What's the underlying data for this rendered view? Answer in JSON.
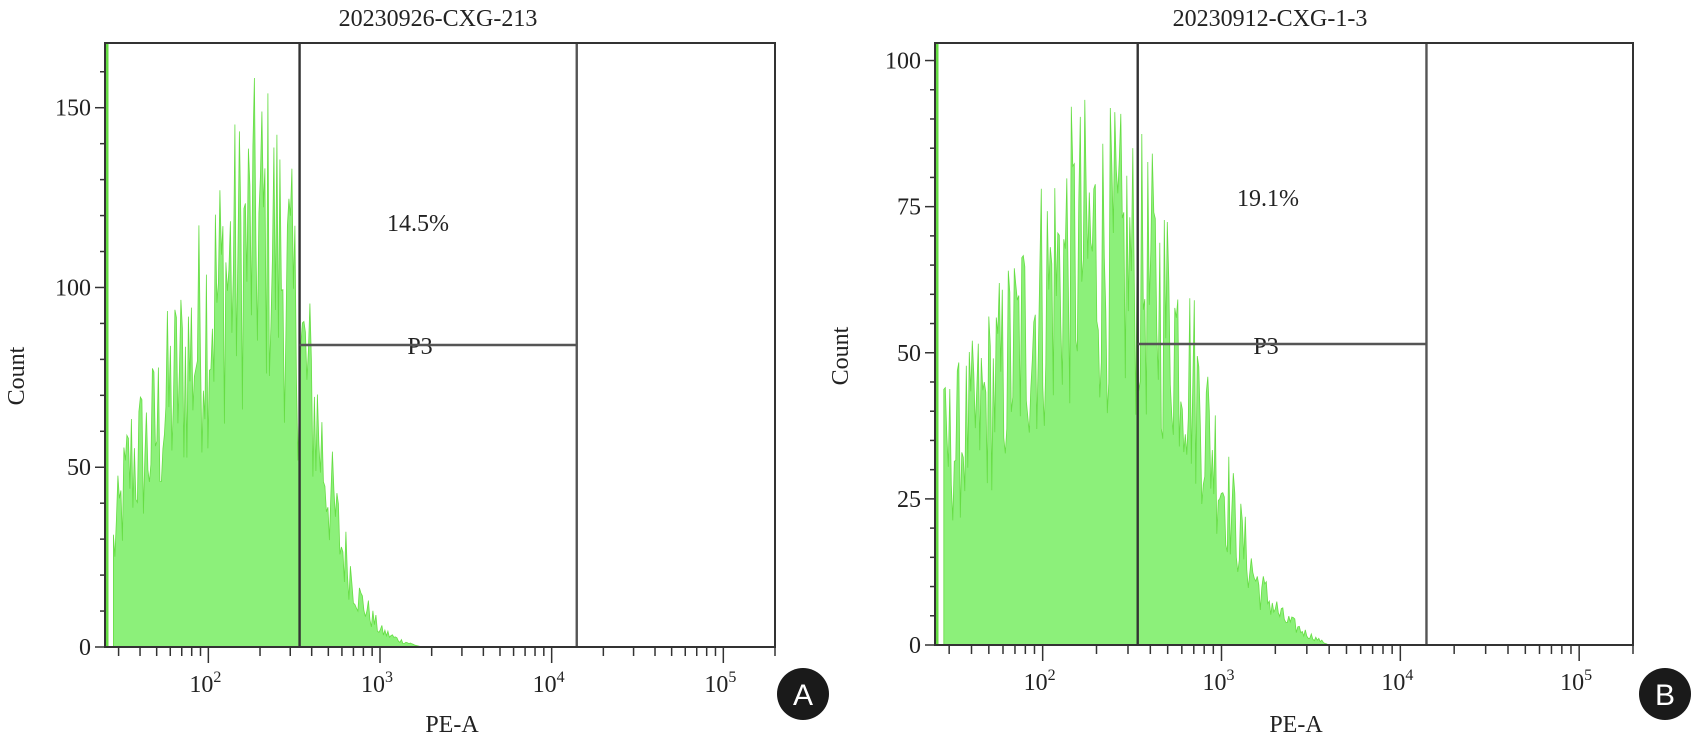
{
  "colors": {
    "histogram": "#8cf07a",
    "histogram_edge": "#66dd44",
    "axis": "#333333",
    "gate": "#555555",
    "badge": "#1a1a1a"
  },
  "chart_data": [
    {
      "type": "histogram",
      "title": "20230926-CXG-213",
      "xlabel": "PE-A",
      "ylabel": "Count",
      "x_scale": "log",
      "xlim": [
        25,
        200000
      ],
      "ylim": [
        0,
        168
      ],
      "yticks": [
        0,
        50,
        100,
        150
      ],
      "xticks": [
        {
          "value": 100,
          "base": "10",
          "exp": "2"
        },
        {
          "value": 1000,
          "base": "10",
          "exp": "3"
        },
        {
          "value": 10000,
          "base": "10",
          "exp": "4"
        },
        {
          "value": 100000,
          "base": "10",
          "exp": "5"
        }
      ],
      "histogram": {
        "x_start": 28,
        "x_end": 1750,
        "peak": 130,
        "profile": [
          [
            28,
            30
          ],
          [
            35,
            55
          ],
          [
            45,
            60
          ],
          [
            60,
            75
          ],
          [
            80,
            88
          ],
          [
            100,
            100
          ],
          [
            130,
            112
          ],
          [
            170,
            120
          ],
          [
            210,
            125
          ],
          [
            260,
            118
          ],
          [
            300,
            105
          ],
          [
            350,
            88
          ],
          [
            420,
            70
          ],
          [
            500,
            48
          ],
          [
            600,
            30
          ],
          [
            750,
            15
          ],
          [
            1000,
            5
          ],
          [
            1300,
            2
          ],
          [
            1750,
            0
          ]
        ]
      },
      "gate": {
        "name": "P3",
        "percent": "14.5%",
        "x_start": 340,
        "x_end": 14000,
        "y_level": 84
      },
      "panel_label": "A"
    },
    {
      "type": "histogram",
      "title": "20230912-CXG-1-3",
      "xlabel": "PE-A",
      "ylabel": "Count",
      "x_scale": "log",
      "xlim": [
        25,
        200000
      ],
      "ylim": [
        0,
        103
      ],
      "yticks": [
        0,
        25,
        50,
        75,
        100
      ],
      "xticks": [
        {
          "value": 100,
          "base": "10",
          "exp": "2"
        },
        {
          "value": 1000,
          "base": "10",
          "exp": "3"
        },
        {
          "value": 10000,
          "base": "10",
          "exp": "4"
        },
        {
          "value": 100000,
          "base": "10",
          "exp": "5"
        }
      ],
      "histogram": {
        "x_start": 28,
        "x_end": 4000,
        "peak": 80,
        "profile": [
          [
            28,
            35
          ],
          [
            40,
            40
          ],
          [
            55,
            48
          ],
          [
            75,
            56
          ],
          [
            100,
            64
          ],
          [
            130,
            70
          ],
          [
            170,
            73
          ],
          [
            220,
            72
          ],
          [
            300,
            70
          ],
          [
            400,
            66
          ],
          [
            550,
            58
          ],
          [
            700,
            48
          ],
          [
            900,
            36
          ],
          [
            1200,
            22
          ],
          [
            1600,
            11
          ],
          [
            2200,
            5
          ],
          [
            3000,
            2
          ],
          [
            4000,
            0
          ]
        ]
      },
      "gate": {
        "name": "P3",
        "percent": "19.1%",
        "x_start": 340,
        "x_end": 14000,
        "y_level": 51.5
      },
      "panel_label": "B"
    }
  ]
}
